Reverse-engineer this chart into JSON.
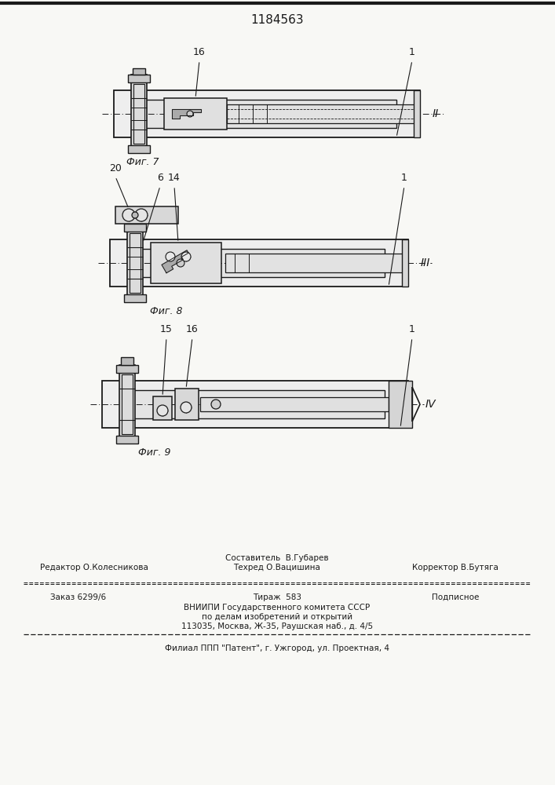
{
  "title": "1184563",
  "bg_color": "#f8f8f5",
  "line_color": "#1a1a1a",
  "text_color": "#1a1a1a",
  "footer_sestavitel": "Составитель  В.Губарев",
  "footer_redaktor": "Редактор О.Колесникова",
  "footer_tehred": "Техред О.Вацишина",
  "footer_korrektor": "Корректор В.Бутяга",
  "footer_zakaz": "Заказ 6299/6",
  "footer_tirazh": "Тираж  583",
  "footer_podpisnoe": "Подписное",
  "footer_vniipи": "ВНИИПИ Государственного комитета СССР",
  "footer_po_delam": "по делам изобретений и открытий",
  "footer_address": "113035, Москва, Ж-35, Раушская наб., д. 4/5",
  "footer_filial": "Филиал ППП \"Патент\", г. Ужгород, ул. Проектная, 4",
  "fig7_caption": "Фиг. 7",
  "fig8_caption": "Фиг. 8",
  "fig9_caption": "Фиг. 9"
}
